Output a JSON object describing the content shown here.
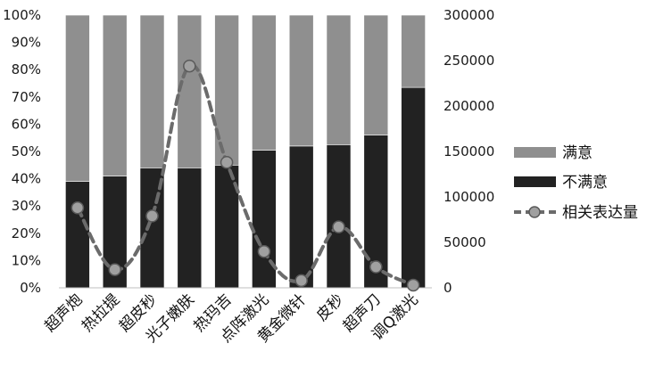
{
  "chart_data": {
    "type": "bar",
    "stacked": true,
    "categories": [
      "超声炮",
      "热拉提",
      "超皮秒",
      "光子嫩肤",
      "热玛吉",
      "点阵激光",
      "黄金微针",
      "皮秒",
      "超声刀",
      "调Q激光"
    ],
    "series": [
      {
        "name": "满意",
        "type": "bar",
        "axis": "left",
        "color": "#8f8f8f",
        "values": [
          61,
          59,
          56,
          56,
          55,
          49.5,
          48,
          47.5,
          44,
          26.5
        ]
      },
      {
        "name": "不满意",
        "type": "bar",
        "axis": "left",
        "color": "#222222",
        "values": [
          39,
          41,
          44,
          44,
          45,
          50.5,
          52,
          52.5,
          56,
          73.5
        ]
      },
      {
        "name": "相关表达量",
        "type": "line",
        "axis": "right",
        "color": "#6b6b6b",
        "style": "dashed",
        "values": [
          88000,
          20000,
          79000,
          244000,
          138000,
          40000,
          8000,
          67000,
          23000,
          3000
        ]
      }
    ],
    "y_left": {
      "min": 0,
      "max": 100,
      "step": 10,
      "ticks": [
        "0%",
        "10%",
        "20%",
        "30%",
        "40%",
        "50%",
        "60%",
        "70%",
        "80%",
        "90%",
        "100%"
      ]
    },
    "y_right": {
      "min": 0,
      "max": 300000,
      "step": 50000,
      "ticks": [
        "0",
        "50000",
        "100000",
        "150000",
        "200000",
        "250000",
        "300000"
      ]
    },
    "title": "",
    "xlabel": "",
    "ylabel": "",
    "grid": false,
    "legend": "right"
  },
  "colors": {
    "satisfied": "#8f8f8f",
    "unsatisfied": "#222222",
    "line": "#6b6b6b",
    "marker": "#a0a0a0",
    "marker_stroke": "#5a5a5a"
  }
}
